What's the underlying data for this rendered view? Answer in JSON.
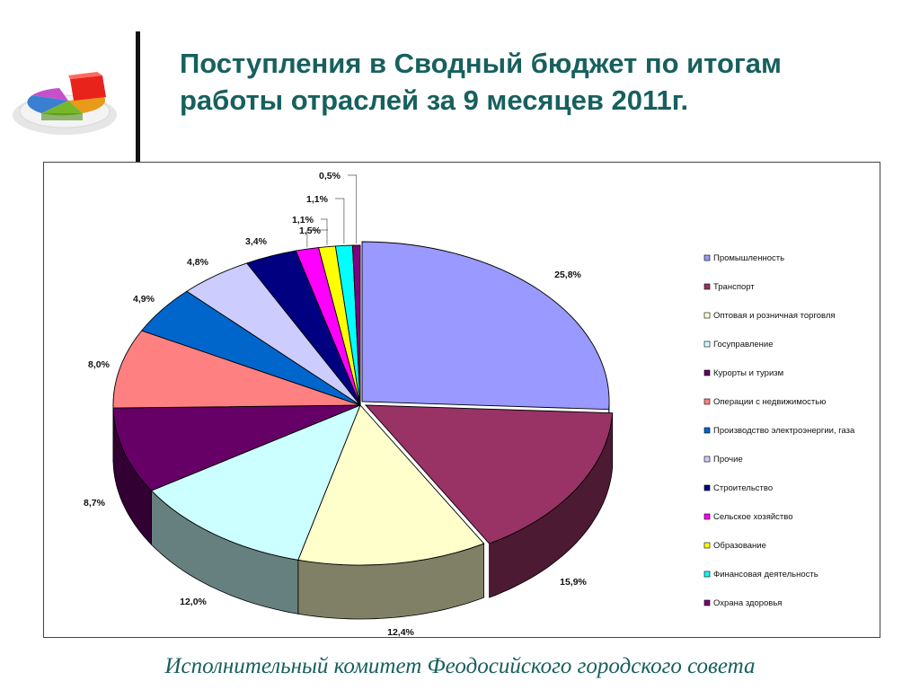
{
  "title": "Поступления в Сводный бюджет по итогам работы отраслей за 9 месяцев 2011г.",
  "footer": "Исполнительный комитет Феодосийского городского совета",
  "chart_data": {
    "type": "pie",
    "pie_style": "3d-exploded",
    "title": "",
    "legend_position": "right",
    "slices": [
      {
        "label": "Промышленность",
        "value": 25.8,
        "value_label": "25,8%",
        "color": "#9999ff"
      },
      {
        "label": "Транспорт",
        "value": 15.9,
        "value_label": "15,9%",
        "color": "#993366"
      },
      {
        "label": "Оптовая и розничная торговля",
        "value": 12.4,
        "value_label": "12,4%",
        "color": "#ffffcc"
      },
      {
        "label": "Госуправление",
        "value": 12.0,
        "value_label": "12,0%",
        "color": "#ccffff"
      },
      {
        "label": "Курорты и туризм",
        "value": 8.7,
        "value_label": "8,7%",
        "color": "#660066"
      },
      {
        "label": "Операции с недвижимостью",
        "value": 8.0,
        "value_label": "8,0%",
        "color": "#ff8080"
      },
      {
        "label": "Производство электроэнергии, газа",
        "value": 4.9,
        "value_label": "4,9%",
        "color": "#0066cc"
      },
      {
        "label": "Прочие",
        "value": 4.8,
        "value_label": "4,8%",
        "color": "#ccccff"
      },
      {
        "label": "Строительство",
        "value": 3.4,
        "value_label": "3,4%",
        "color": "#000080"
      },
      {
        "label": "Сельское хозяйство",
        "value": 1.5,
        "value_label": "1,5%",
        "color": "#ff00ff"
      },
      {
        "label": "Образование",
        "value": 1.1,
        "value_label": "1,1%",
        "color": "#ffff00"
      },
      {
        "label": "Финансовая деятельность",
        "value": 1.1,
        "value_label": "1,1%",
        "color": "#00ffff"
      },
      {
        "label": "Охрана здоровья",
        "value": 0.5,
        "value_label": "0,5%",
        "color": "#800080"
      }
    ]
  }
}
